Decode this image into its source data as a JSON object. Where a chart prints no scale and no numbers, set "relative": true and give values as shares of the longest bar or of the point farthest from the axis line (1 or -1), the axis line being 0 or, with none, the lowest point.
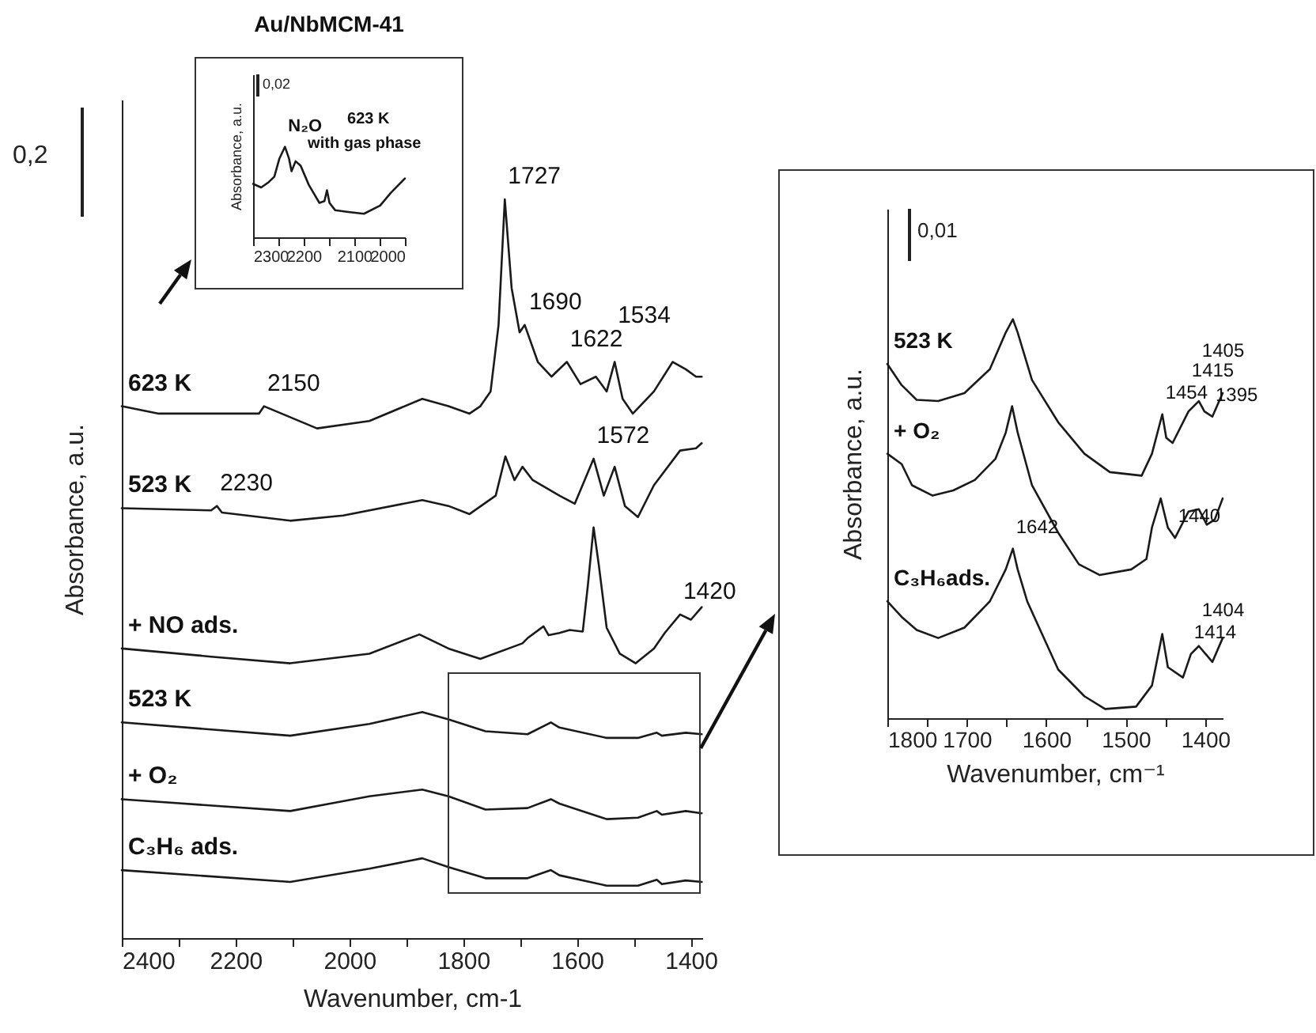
{
  "chart_data": [
    {
      "type": "line",
      "xlabel": "Wavenumber, cm-1",
      "ylabel": "Absorbance, a.u.",
      "xlim": [
        2400,
        1380
      ],
      "xticks": [
        2400,
        {
          "value": 2300,
          "label": null
        },
        2200,
        {
          "value": 2100,
          "label": null
        },
        2000,
        {
          "value": 1900,
          "label": null
        },
        1800,
        {
          "value": 1700,
          "label": null
        },
        1600,
        {
          "value": 1500,
          "label": null
        },
        1400
      ],
      "relative": true,
      "tick_labels": "x",
      "annotations": [
        "0,2",
        {
          "text": "2150",
          "x": 2150,
          "y": 0.72
        },
        {
          "text": "2230",
          "x": 2233,
          "y": 0.585
        },
        {
          "text": "1727",
          "x": 1727,
          "y": 1.0
        },
        {
          "text": "1690",
          "x": 1690,
          "y": 0.83
        },
        {
          "text": "1622",
          "x": 1618,
          "y": 0.78
        },
        {
          "text": "1534",
          "x": 1534,
          "y": 0.78
        },
        {
          "text": "1572",
          "x": 1571,
          "y": 0.649
        },
        {
          "text": "1420",
          "x": 1419,
          "y": 0.438
        }
      ],
      "series": [
        {
          "name": "623 K",
          "color": "#1a1a1a",
          "x": [
            2400,
            2335,
            2243,
            2159,
            2150,
            2057,
            1965,
            1872,
            1826,
            1789,
            1770,
            1752,
            1738,
            1727,
            1715,
            1701,
            1692,
            1669,
            1645,
            1618,
            1594,
            1567,
            1548,
            1534,
            1520,
            1502,
            1465,
            1432,
            1409,
            1391,
            1381
          ],
          "values": [
            0.72,
            0.71,
            0.71,
            0.71,
            0.72,
            0.69,
            0.7,
            0.73,
            0.72,
            0.71,
            0.72,
            0.74,
            0.83,
            1.0,
            0.88,
            0.82,
            0.83,
            0.78,
            0.76,
            0.78,
            0.75,
            0.76,
            0.74,
            0.78,
            0.73,
            0.71,
            0.74,
            0.78,
            0.77,
            0.76,
            0.76
          ]
        },
        {
          "name": "523 K",
          "color": "#1a1a1a",
          "x": [
            2400,
            2243,
            2233,
            2224,
            2104,
            2011,
            1872,
            1826,
            1789,
            1743,
            1726,
            1710,
            1696,
            1678,
            1631,
            1604,
            1571,
            1553,
            1534,
            1516,
            1493,
            1465,
            1419,
            1391,
            1381
          ],
          "values": [
            0.582,
            0.579,
            0.585,
            0.576,
            0.565,
            0.572,
            0.593,
            0.585,
            0.574,
            0.599,
            0.652,
            0.62,
            0.638,
            0.62,
            0.599,
            0.588,
            0.649,
            0.599,
            0.638,
            0.585,
            0.57,
            0.613,
            0.66,
            0.663,
            0.67
          ]
        },
        {
          "name": "+ NO ads.",
          "color": "#1a1a1a",
          "x": [
            2400,
            2243,
            2104,
            1965,
            1877,
            1826,
            1770,
            1696,
            1687,
            1659,
            1650,
            1631,
            1613,
            1590,
            1581,
            1571,
            1562,
            1548,
            1525,
            1497,
            1465,
            1446,
            1419,
            1400,
            1381
          ],
          "values": [
            0.392,
            0.381,
            0.372,
            0.385,
            0.411,
            0.392,
            0.378,
            0.399,
            0.406,
            0.422,
            0.41,
            0.413,
            0.417,
            0.415,
            0.478,
            0.556,
            0.506,
            0.42,
            0.385,
            0.372,
            0.392,
            0.413,
            0.438,
            0.431,
            0.448
          ]
        },
        {
          "name": "523 K",
          "color": "#1a1a1a",
          "x": [
            2400,
            2104,
            1965,
            1872,
            1826,
            1761,
            1687,
            1646,
            1631,
            1548,
            1493,
            1460,
            1451,
            1409,
            1381
          ],
          "values": [
            0.292,
            0.274,
            0.29,
            0.306,
            0.296,
            0.28,
            0.276,
            0.292,
            0.285,
            0.271,
            0.271,
            0.278,
            0.274,
            0.278,
            0.276
          ]
        },
        {
          "name": "+ O₂",
          "color": "#1a1a1a",
          "x": [
            2400,
            2104,
            1965,
            1872,
            1826,
            1761,
            1687,
            1646,
            1631,
            1548,
            1493,
            1460,
            1451,
            1409,
            1381
          ],
          "values": [
            0.188,
            0.172,
            0.192,
            0.201,
            0.192,
            0.174,
            0.176,
            0.188,
            0.182,
            0.161,
            0.163,
            0.172,
            0.167,
            0.172,
            0.169
          ]
        },
        {
          "name": "C₃H₆ ads.",
          "color": "#1a1a1a",
          "x": [
            2400,
            2104,
            1965,
            1872,
            1826,
            1761,
            1687,
            1646,
            1631,
            1548,
            1493,
            1460,
            1451,
            1409,
            1381
          ],
          "values": [
            0.092,
            0.076,
            0.094,
            0.108,
            0.096,
            0.081,
            0.081,
            0.092,
            0.085,
            0.071,
            0.071,
            0.079,
            0.073,
            0.078,
            0.076
          ]
        }
      ]
    },
    {
      "type": "line",
      "title": "Au/NbMCM-41",
      "ylabel": "Absorbance, a.u.",
      "xlim": [
        2300,
        2000
      ],
      "xticks": [
        2300,
        {
          "value": 2250,
          "label": null
        },
        2200,
        {
          "value": 2150,
          "label": null
        },
        2100,
        {
          "value": 2050,
          "label": null
        },
        2000
      ],
      "relative": true,
      "tick_labels": "x",
      "annotations": [
        "0,02",
        "623 K",
        "with gas phase",
        {
          "text": "N₂O",
          "x": 2237,
          "y": 1.0
        }
      ],
      "series": [
        {
          "color": "#1a1a1a",
          "x": [
            2300,
            2284,
            2269,
            2258,
            2248,
            2237,
            2229,
            2224,
            2216,
            2206,
            2190,
            2169,
            2159,
            2154,
            2149,
            2138,
            2112,
            2081,
            2049,
            2028,
            2000
          ],
          "values": [
            0.59,
            0.55,
            0.61,
            0.67,
            0.87,
            1.0,
            0.87,
            0.73,
            0.84,
            0.79,
            0.58,
            0.38,
            0.4,
            0.52,
            0.38,
            0.3,
            0.28,
            0.26,
            0.35,
            0.49,
            0.65
          ]
        }
      ]
    },
    {
      "type": "line",
      "xlabel": "Wavenumber, cm⁻¹",
      "ylabel": "Absorbance, a.u.",
      "xlim": [
        1800,
        1378
      ],
      "xticks": [
        1800,
        {
          "value": 1750,
          "label": null
        },
        1700,
        {
          "value": 1650,
          "label": null
        },
        1600,
        {
          "value": 1550,
          "label": null
        },
        1500,
        {
          "value": 1450,
          "label": null
        },
        1400
      ],
      "relative": true,
      "tick_labels": "x",
      "annotations": [
        "0,01",
        {
          "text": "1454",
          "x": 1454,
          "y": 0.762
        },
        {
          "text": "1415",
          "x": 1421,
          "y": 0.769
        },
        {
          "text": "1405",
          "x": 1408,
          "y": 0.795
        },
        {
          "text": "1395",
          "x": 1391,
          "y": 0.756
        },
        {
          "text": "1440",
          "x": 1438,
          "y": 0.452
        },
        {
          "text": "1642",
          "x": 1642,
          "y": 0.425
        },
        {
          "text": "1414",
          "x": 1418,
          "y": 0.161
        },
        {
          "text": "1404",
          "x": 1408,
          "y": 0.181
        }
      ],
      "series": [
        {
          "name": "523 K",
          "color": "#1a1a1a",
          "x": [
            1800,
            1782,
            1763,
            1736,
            1703,
            1671,
            1651,
            1642,
            1636,
            1618,
            1585,
            1552,
            1520,
            1480,
            1467,
            1454,
            1449,
            1441,
            1421,
            1408,
            1401,
            1391,
            1378
          ],
          "values": [
            0.888,
            0.835,
            0.798,
            0.795,
            0.815,
            0.875,
            0.967,
            1.0,
            0.967,
            0.848,
            0.742,
            0.663,
            0.617,
            0.608,
            0.663,
            0.762,
            0.703,
            0.69,
            0.769,
            0.795,
            0.769,
            0.756,
            0.815
          ]
        },
        {
          "name": "+ O₂",
          "color": "#1a1a1a",
          "x": [
            1800,
            1782,
            1769,
            1743,
            1717,
            1690,
            1664,
            1651,
            1643,
            1636,
            1618,
            1585,
            1559,
            1533,
            1493,
            1474,
            1467,
            1456,
            1447,
            1438,
            1421,
            1408,
            1398,
            1388,
            1378
          ],
          "values": [
            0.663,
            0.637,
            0.584,
            0.558,
            0.571,
            0.597,
            0.65,
            0.716,
            0.782,
            0.716,
            0.584,
            0.465,
            0.386,
            0.359,
            0.373,
            0.399,
            0.478,
            0.551,
            0.478,
            0.452,
            0.518,
            0.524,
            0.485,
            0.498,
            0.551
          ]
        },
        {
          "name": "C₃H₆ads.",
          "color": "#1a1a1a",
          "x": [
            1800,
            1782,
            1763,
            1736,
            1703,
            1671,
            1651,
            1642,
            1636,
            1624,
            1585,
            1552,
            1526,
            1487,
            1467,
            1454,
            1447,
            1428,
            1418,
            1408,
            1391,
            1378
          ],
          "values": [
            0.293,
            0.254,
            0.221,
            0.201,
            0.227,
            0.293,
            0.373,
            0.425,
            0.373,
            0.293,
            0.122,
            0.055,
            0.023,
            0.029,
            0.082,
            0.211,
            0.128,
            0.102,
            0.161,
            0.181,
            0.141,
            0.201
          ]
        }
      ]
    }
  ]
}
